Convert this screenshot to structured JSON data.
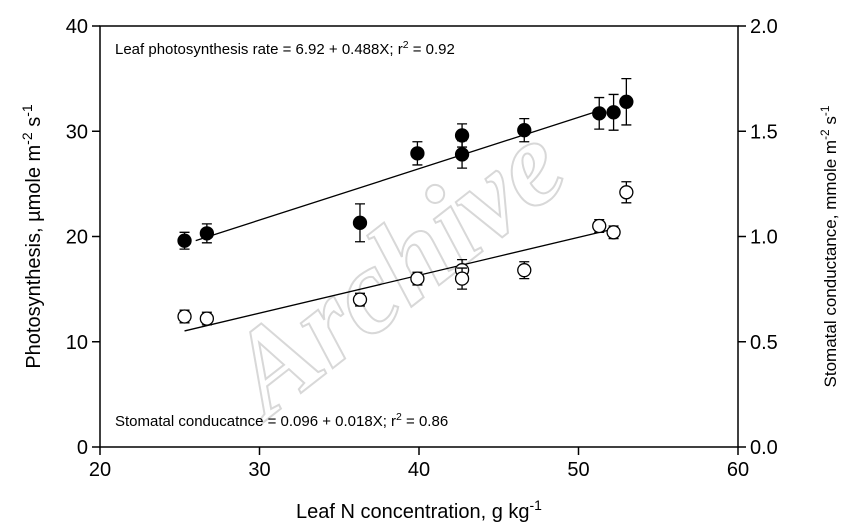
{
  "chart_data": {
    "type": "scatter",
    "watermark": "Archive",
    "x_label": [
      "Leaf N concentration, g kg",
      "-1"
    ],
    "y_label": [
      "Photosynthesis, µmole m",
      "-2",
      " s",
      "-1"
    ],
    "y2_label": [
      "Stomatal conductance, mmole m",
      "-2",
      " s",
      "-1"
    ],
    "annotations": [
      [
        "Leaf photosynthesis rate = 6.92 + 0.488X;  r",
        "2",
        " = 0.92"
      ],
      [
        "Stomatal conducatnce = 0.096 + 0.018X;  r",
        "2",
        " = 0.86"
      ]
    ],
    "xlim": [
      20,
      60
    ],
    "xticks": [
      20,
      30,
      40,
      50,
      60
    ],
    "ylim": [
      0,
      40
    ],
    "yticks": [
      0,
      10,
      20,
      30,
      40
    ],
    "y2lim": [
      0,
      2
    ],
    "y2ticks": [
      {
        "value": 0,
        "label": "0.0"
      },
      {
        "value": 0.5,
        "label": "0.5"
      },
      {
        "value": 1,
        "label": "1.0"
      },
      {
        "value": 1.5,
        "label": "1.5"
      },
      {
        "value": 2,
        "label": "2.0"
      }
    ],
    "series": [
      {
        "marker": "filled",
        "color": "#000000",
        "axis": "y",
        "x": [
          25.3,
          26.7,
          36.3,
          39.9,
          42.7,
          42.7,
          46.6,
          51.3,
          52.2,
          53.0
        ],
        "values": [
          19.6,
          20.3,
          21.3,
          27.9,
          29.6,
          27.8,
          30.1,
          31.7,
          31.8,
          32.8
        ],
        "errors": [
          0.8,
          0.9,
          1.8,
          1.1,
          1.1,
          1.3,
          1.1,
          1.5,
          1.7,
          2.2
        ],
        "fit": {
          "intercept": 6.92,
          "slope": 0.488,
          "x_range": [
            26,
            51.5
          ]
        }
      },
      {
        "marker": "open",
        "color": "#000000",
        "axis": "y2",
        "x": [
          25.3,
          26.7,
          36.3,
          39.9,
          42.7,
          42.7,
          46.6,
          51.3,
          52.2,
          53.0
        ],
        "values": [
          0.62,
          0.61,
          0.7,
          0.8,
          0.84,
          0.8,
          0.84,
          1.05,
          1.02,
          1.21
        ],
        "errors": [
          0.03,
          0.03,
          0.03,
          0.03,
          0.05,
          0.05,
          0.04,
          0.03,
          0.03,
          0.05
        ],
        "fit": {
          "intercept": 0.096,
          "slope": 0.018,
          "x_range": [
            25.3,
            52.5
          ]
        }
      }
    ]
  }
}
